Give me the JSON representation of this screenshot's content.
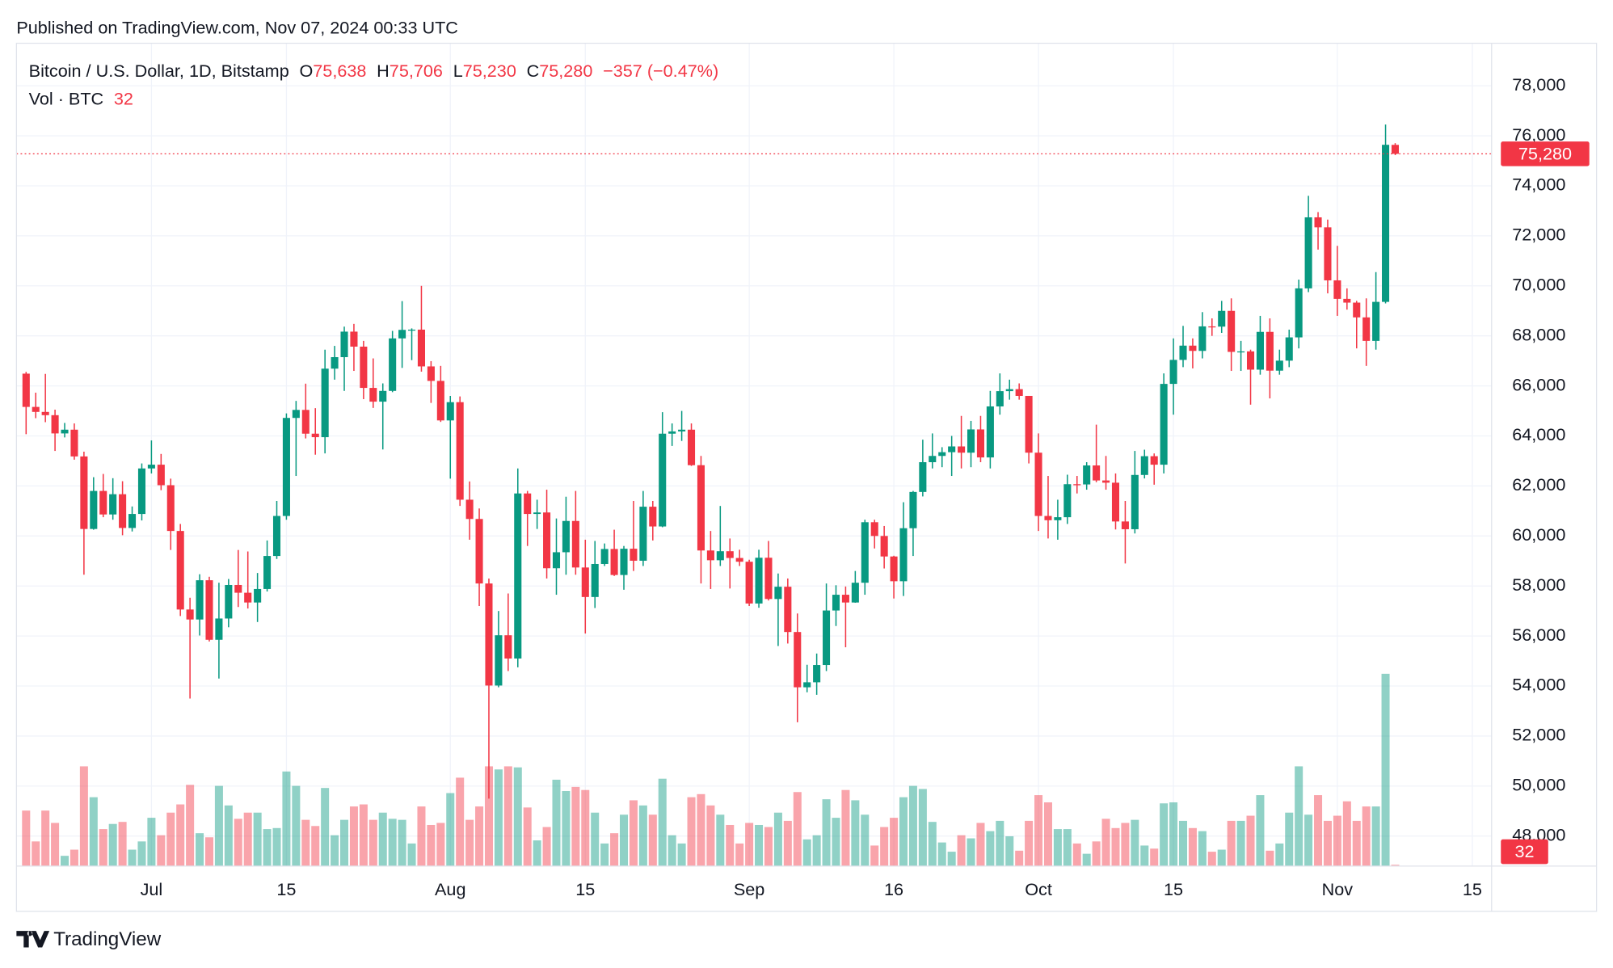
{
  "header": {
    "published": "Published on TradingView.com, Nov 07, 2024 00:33 UTC"
  },
  "legend": {
    "symbol": "Bitcoin / U.S. Dollar, 1D, Bitstamp",
    "open_label": "O",
    "open": "75,638",
    "high_label": "H",
    "high": "75,706",
    "low_label": "L",
    "low": "75,230",
    "close_label": "C",
    "close": "75,280",
    "change": "−357 (−0.47%)",
    "volume_label": "Vol · BTC",
    "volume": "32"
  },
  "footer": {
    "brand": "TradingView"
  },
  "chart_data": {
    "type": "candlestick",
    "up_color": "#089981",
    "down_color": "#f23645",
    "grid": true,
    "last_price_label": "75,280",
    "last_volume_label": "32",
    "x": [
      "2024-06-18",
      "2024-06-19",
      "2024-06-20",
      "2024-06-21",
      "2024-06-22",
      "2024-06-23",
      "2024-06-24",
      "2024-06-25",
      "2024-06-26",
      "2024-06-27",
      "2024-06-28",
      "2024-06-29",
      "2024-06-30",
      "2024-07-01",
      "2024-07-02",
      "2024-07-03",
      "2024-07-04",
      "2024-07-05",
      "2024-07-06",
      "2024-07-07",
      "2024-07-08",
      "2024-07-09",
      "2024-07-10",
      "2024-07-11",
      "2024-07-12",
      "2024-07-13",
      "2024-07-14",
      "2024-07-15",
      "2024-07-16",
      "2024-07-17",
      "2024-07-18",
      "2024-07-19",
      "2024-07-20",
      "2024-07-21",
      "2024-07-22",
      "2024-07-23",
      "2024-07-24",
      "2024-07-25",
      "2024-07-26",
      "2024-07-27",
      "2024-07-28",
      "2024-07-29",
      "2024-07-30",
      "2024-07-31",
      "2024-08-01",
      "2024-08-02",
      "2024-08-03",
      "2024-08-04",
      "2024-08-05",
      "2024-08-06",
      "2024-08-07",
      "2024-08-08",
      "2024-08-09",
      "2024-08-10",
      "2024-08-11",
      "2024-08-12",
      "2024-08-13",
      "2024-08-14",
      "2024-08-15",
      "2024-08-16",
      "2024-08-17",
      "2024-08-18",
      "2024-08-19",
      "2024-08-20",
      "2024-08-21",
      "2024-08-22",
      "2024-08-23",
      "2024-08-24",
      "2024-08-25",
      "2024-08-26",
      "2024-08-27",
      "2024-08-28",
      "2024-08-29",
      "2024-08-30",
      "2024-08-31",
      "2024-09-01",
      "2024-09-02",
      "2024-09-03",
      "2024-09-04",
      "2024-09-05",
      "2024-09-06",
      "2024-09-07",
      "2024-09-08",
      "2024-09-09",
      "2024-09-10",
      "2024-09-11",
      "2024-09-12",
      "2024-09-13",
      "2024-09-14",
      "2024-09-15",
      "2024-09-16",
      "2024-09-17",
      "2024-09-18",
      "2024-09-19",
      "2024-09-20",
      "2024-09-21",
      "2024-09-22",
      "2024-09-23",
      "2024-09-24",
      "2024-09-25",
      "2024-09-26",
      "2024-09-27",
      "2024-09-28",
      "2024-09-29",
      "2024-09-30",
      "2024-10-01",
      "2024-10-02",
      "2024-10-03",
      "2024-10-04",
      "2024-10-05",
      "2024-10-06",
      "2024-10-07",
      "2024-10-08",
      "2024-10-09",
      "2024-10-10",
      "2024-10-11",
      "2024-10-12",
      "2024-10-13",
      "2024-10-14",
      "2024-10-15",
      "2024-10-16",
      "2024-10-17",
      "2024-10-18",
      "2024-10-19",
      "2024-10-20",
      "2024-10-21",
      "2024-10-22",
      "2024-10-23",
      "2024-10-24",
      "2024-10-25",
      "2024-10-26",
      "2024-10-27",
      "2024-10-28",
      "2024-10-29",
      "2024-10-30",
      "2024-10-31",
      "2024-11-01",
      "2024-11-02",
      "2024-11-03",
      "2024-11-04",
      "2024-11-05",
      "2024-11-06",
      "2024-11-07"
    ],
    "open": [
      66490,
      65160,
      64960,
      64830,
      64100,
      64250,
      63180,
      60280,
      61800,
      60860,
      61670,
      60320,
      60880,
      62700,
      62850,
      62030,
      60200,
      57060,
      56660,
      58230,
      55850,
      56700,
      58040,
      57730,
      57340,
      57880,
      59200,
      60800,
      64720,
      65040,
      64090,
      63950,
      66690,
      67150,
      68170,
      67570,
      65920,
      65370,
      65800,
      67900,
      68240,
      68250,
      66780,
      66200,
      64620,
      65350,
      61450,
      60680,
      58100,
      54020,
      56030,
      55100,
      61700,
      60880,
      60940,
      58710,
      59350,
      60600,
      58740,
      57560,
      58880,
      59480,
      58440,
      59490,
      59010,
      61170,
      60380,
      64090,
      64180,
      64250,
      62830,
      59420,
      59030,
      59390,
      59120,
      58970,
      57300,
      59130,
      57480,
      57970,
      56160,
      53950,
      54150,
      54840,
      57020,
      57650,
      57340,
      58130,
      60550,
      60000,
      59180,
      58190,
      60310,
      61760,
      62950,
      63200,
      63350,
      63580,
      63330,
      64260,
      63140,
      65180,
      65790,
      65870,
      65600,
      63330,
      60800,
      60630,
      60750,
      62070,
      62060,
      62820,
      62220,
      62130,
      60580,
      60270,
      62440,
      63190,
      62850,
      66080,
      67040,
      67610,
      67400,
      68380,
      68370,
      69000,
      67360,
      67380,
      66650,
      68160,
      66610,
      67010,
      67940,
      69900,
      72740,
      72340,
      70220,
      69480,
      69330,
      68740,
      67800,
      69360,
      75638
    ],
    "high": [
      66560,
      65730,
      66480,
      65050,
      64520,
      64500,
      63370,
      62350,
      62480,
      62310,
      62190,
      61180,
      62900,
      63820,
      63280,
      62290,
      60480,
      57530,
      58470,
      58370,
      58130,
      58280,
      59440,
      59380,
      58520,
      59820,
      61400,
      64900,
      65400,
      66090,
      65110,
      67450,
      67600,
      68370,
      68480,
      67800,
      67100,
      66100,
      68200,
      69390,
      68300,
      70000,
      66990,
      66800,
      65600,
      65580,
      62180,
      61100,
      58300,
      57000,
      57700,
      62700,
      61800,
      61450,
      61850,
      60700,
      61570,
      61800,
      59850,
      59800,
      59700,
      60250,
      59600,
      61400,
      61800,
      61400,
      64950,
      64500,
      65000,
      64500,
      63200,
      60200,
      61200,
      59900,
      59450,
      59050,
      59450,
      59800,
      58500,
      58300,
      56900,
      54850,
      55300,
      58100,
      58030,
      57980,
      58600,
      60650,
      60650,
      60400,
      59210,
      61350,
      61800,
      63850,
      64100,
      63550,
      64000,
      64800,
      64600,
      64800,
      65800,
      66500,
      66250,
      66100,
      65600,
      64100,
      62400,
      61450,
      62450,
      62400,
      62950,
      64450,
      63200,
      62500,
      61400,
      63400,
      63450,
      63300,
      66500,
      67900,
      68400,
      67900,
      68950,
      68700,
      69400,
      69500,
      67800,
      67450,
      68800,
      68700,
      67450,
      68250,
      70250,
      73600,
      72950,
      72650,
      71600,
      69900,
      69400,
      69500,
      70550,
      76450,
      75706
    ],
    "low": [
      64070,
      64710,
      64550,
      63400,
      63940,
      63050,
      58450,
      60250,
      60750,
      60650,
      60030,
      60180,
      60620,
      62500,
      61830,
      59440,
      56800,
      53500,
      56020,
      55780,
      54300,
      56350,
      57160,
      57100,
      56560,
      57780,
      59080,
      60650,
      62400,
      63900,
      63250,
      63300,
      66250,
      65800,
      66600,
      65470,
      65120,
      63460,
      65750,
      66720,
      67030,
      66570,
      65320,
      64560,
      62290,
      61200,
      59850,
      57200,
      49500,
      53950,
      54600,
      54750,
      59600,
      60280,
      58300,
      57650,
      58450,
      58450,
      56100,
      57120,
      58800,
      58400,
      57850,
      58600,
      58800,
      59820,
      60350,
      63600,
      63800,
      62800,
      58100,
      57880,
      58800,
      57900,
      58800,
      57200,
      57130,
      57420,
      55600,
      55700,
      52550,
      53750,
      53650,
      54600,
      56400,
      55550,
      57330,
      57650,
      59500,
      58700,
      57500,
      57600,
      59200,
      61580,
      62700,
      62750,
      62400,
      62700,
      62750,
      62950,
      62700,
      64850,
      65450,
      65450,
      62900,
      60200,
      59900,
      59850,
      60480,
      61700,
      61850,
      62150,
      61850,
      60260,
      58900,
      60100,
      62300,
      62050,
      62500,
      64850,
      66750,
      66700,
      67100,
      68000,
      68120,
      66600,
      66600,
      65250,
      66450,
      65500,
      66450,
      66750,
      67500,
      69750,
      71450,
      69700,
      68800,
      69050,
      67500,
      66800,
      67450,
      69300,
      75230
    ],
    "close": [
      65160,
      64960,
      64830,
      64100,
      64250,
      63180,
      60280,
      61800,
      60860,
      61670,
      60320,
      60880,
      62700,
      62850,
      62030,
      60200,
      57060,
      56660,
      58230,
      55850,
      56700,
      58040,
      57730,
      57340,
      57880,
      59200,
      60800,
      64720,
      65040,
      64090,
      63950,
      66690,
      67150,
      68170,
      67570,
      65920,
      65370,
      65800,
      67900,
      68240,
      68250,
      66780,
      66200,
      64620,
      65350,
      61450,
      60680,
      58100,
      54020,
      56030,
      55100,
      61700,
      60880,
      60940,
      58710,
      59350,
      60600,
      58740,
      57560,
      58880,
      59480,
      58440,
      59490,
      59010,
      61170,
      60380,
      64090,
      64180,
      64250,
      62830,
      59420,
      59030,
      59390,
      59120,
      58970,
      57300,
      59130,
      57480,
      57970,
      56160,
      53950,
      54150,
      54840,
      57020,
      57650,
      57340,
      58130,
      60550,
      60000,
      59180,
      58190,
      60310,
      61760,
      62950,
      63200,
      63350,
      63580,
      63330,
      64260,
      63140,
      65180,
      65790,
      65870,
      65600,
      63330,
      60800,
      60630,
      60750,
      62070,
      62060,
      62820,
      62220,
      62130,
      60580,
      60270,
      62440,
      63190,
      62850,
      66080,
      67040,
      67610,
      67400,
      68380,
      68370,
      69000,
      67360,
      67380,
      66650,
      68160,
      66610,
      67010,
      67940,
      69900,
      72740,
      72340,
      70220,
      69480,
      69330,
      68740,
      67800,
      69360,
      75640,
      75280
    ],
    "volume": [
      1350,
      600,
      1350,
      1050,
      250,
      400,
      2425,
      1675,
      900,
      1025,
      1075,
      400,
      600,
      1175,
      750,
      1300,
      1500,
      1975,
      800,
      700,
      1950,
      1475,
      1150,
      1300,
      1300,
      900,
      925,
      2300,
      1950,
      1125,
      975,
      1900,
      750,
      1125,
      1450,
      1500,
      1125,
      1300,
      1150,
      1125,
      550,
      1450,
      1000,
      1050,
      1775,
      2150,
      1125,
      1450,
      2425,
      2350,
      2425,
      2400,
      1425,
      625,
      950,
      2100,
      1825,
      1925,
      1850,
      1300,
      550,
      800,
      1250,
      1600,
      1475,
      1250,
      2125,
      750,
      550,
      1675,
      1750,
      1475,
      1250,
      1000,
      550,
      1050,
      1000,
      950,
      1300,
      1100,
      1800,
      650,
      750,
      1625,
      1175,
      1850,
      1600,
      1250,
      500,
      950,
      1175,
      1675,
      1950,
      1875,
      1075,
      575,
      350,
      750,
      675,
      1050,
      850,
      1100,
      725,
      375,
      1100,
      1725,
      1550,
      900,
      900,
      550,
      300,
      600,
      1150,
      925,
      1050,
      1125,
      500,
      425,
      1525,
      1550,
      1100,
      925,
      850,
      350,
      400,
      1100,
      1100,
      1225,
      1725,
      375,
      550,
      1300,
      2425,
      1250,
      1725,
      1100,
      1225,
      1575,
      1100,
      1450,
      1450,
      4675,
      32
    ],
    "volume_ylim": [
      0,
      20000
    ],
    "xlim": [
      "2024-06-17",
      "2024-11-17"
    ],
    "xticks": [
      {
        "value": "2024-07-01",
        "label": "Jul"
      },
      {
        "value": "2024-07-15",
        "label": "15"
      },
      {
        "value": "2024-08-01",
        "label": "Aug"
      },
      {
        "value": "2024-08-15",
        "label": "15"
      },
      {
        "value": "2024-09-01",
        "label": "Sep"
      },
      {
        "value": "2024-09-16",
        "label": "16"
      },
      {
        "value": "2024-10-01",
        "label": "Oct"
      },
      {
        "value": "2024-10-15",
        "label": "15"
      },
      {
        "value": "2024-11-01",
        "label": "Nov"
      },
      {
        "value": "2024-11-15",
        "label": "15"
      }
    ],
    "ylim": [
      46800,
      79700
    ],
    "yticks": [
      {
        "value": 48000,
        "label": "48,000"
      },
      {
        "value": 50000,
        "label": "50,000"
      },
      {
        "value": 52000,
        "label": "52,000"
      },
      {
        "value": 54000,
        "label": "54,000"
      },
      {
        "value": 56000,
        "label": "56,000"
      },
      {
        "value": 58000,
        "label": "58,000"
      },
      {
        "value": 60000,
        "label": "60,000"
      },
      {
        "value": 62000,
        "label": "62,000"
      },
      {
        "value": 64000,
        "label": "64,000"
      },
      {
        "value": 66000,
        "label": "66,000"
      },
      {
        "value": 68000,
        "label": "68,000"
      },
      {
        "value": 70000,
        "label": "70,000"
      },
      {
        "value": 72000,
        "label": "72,000"
      },
      {
        "value": 74000,
        "label": "74,000"
      },
      {
        "value": 76000,
        "label": "76,000"
      },
      {
        "value": 78000,
        "label": "78,000"
      }
    ]
  }
}
